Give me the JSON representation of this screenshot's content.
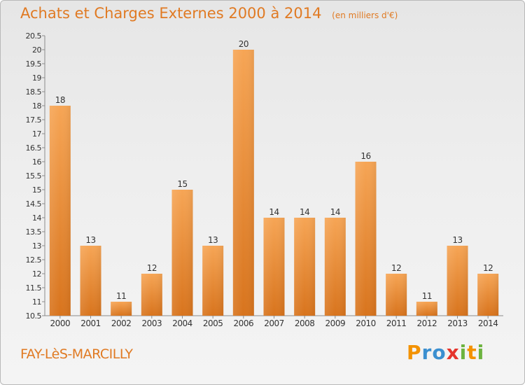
{
  "header": {
    "title": "Achats et Charges Externes 2000 à 2014",
    "unit": "(en milliers d'€)"
  },
  "footer": {
    "location": "FAY-LèS-MARCILLY",
    "brand": [
      "P",
      "r",
      "o",
      "x",
      "i",
      "t",
      "i"
    ],
    "brand_colors": [
      "#f39200",
      "#3a8fd0",
      "#3a8fd0",
      "#e5342c",
      "#6cb33f",
      "#f39200",
      "#6cb33f"
    ]
  },
  "chart_data": {
    "type": "bar",
    "categories": [
      "2000",
      "2001",
      "2002",
      "2003",
      "2004",
      "2005",
      "2006",
      "2007",
      "2008",
      "2009",
      "2010",
      "2011",
      "2012",
      "2013",
      "2014"
    ],
    "values": [
      18,
      13,
      11,
      12,
      15,
      13,
      20,
      14,
      14,
      14,
      16,
      12,
      11,
      13,
      12
    ],
    "value_labels": [
      "18",
      "13",
      "11",
      "12",
      "15",
      "13",
      "20",
      "14",
      "14",
      "14",
      "16",
      "12",
      "11",
      "13",
      "12"
    ],
    "yticks": [
      "10.5",
      "11",
      "11.5",
      "12",
      "12.5",
      "13",
      "13.5",
      "14",
      "14.5",
      "15",
      "15.5",
      "16",
      "16.5",
      "17",
      "17.5",
      "18",
      "18.5",
      "19",
      "19.5",
      "20",
      "20.5"
    ],
    "ylim": [
      10.5,
      20.5
    ],
    "title": "Achats et Charges Externes 2000 à 2014",
    "xlabel": "",
    "ylabel": "",
    "grid": false,
    "bar_color": "#f0912f"
  }
}
